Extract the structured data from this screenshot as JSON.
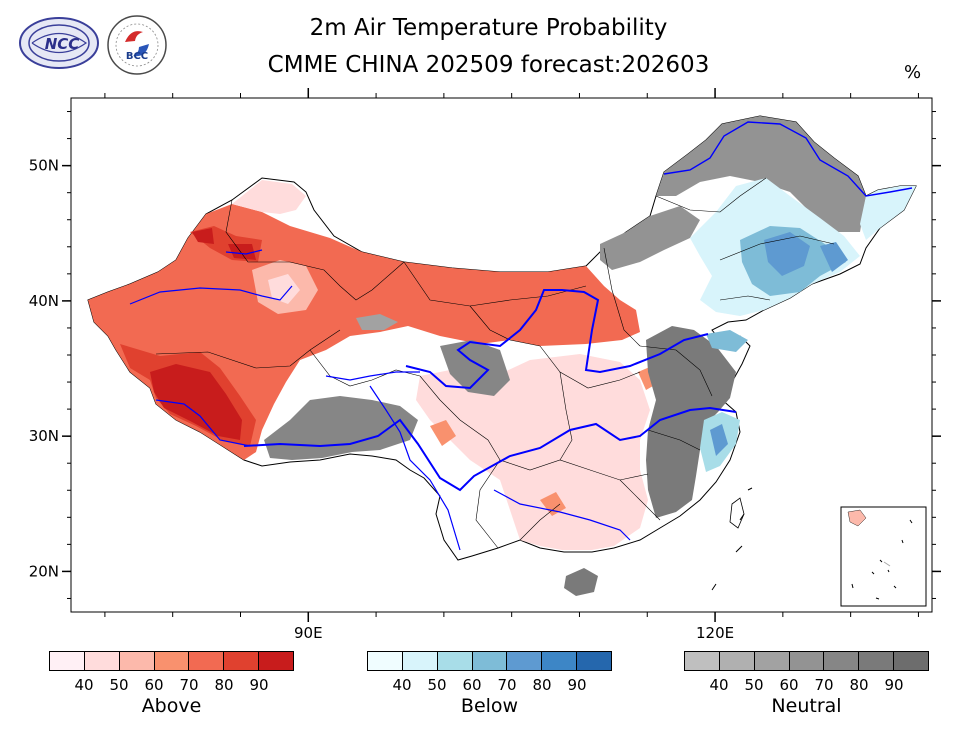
{
  "header": {
    "title_line1": "2m Air Temperature Probability",
    "title_line2": "CMME CHINA 202509 forecast:202603",
    "unit": "%"
  },
  "logos": {
    "ncc": {
      "name": "NCC",
      "text": "NCC"
    },
    "bcc": {
      "name": "BCC",
      "text": "BCC"
    }
  },
  "map": {
    "lat_labels": [
      "50N",
      "40N",
      "30N",
      "20N"
    ],
    "lon_labels": [
      "90E",
      "120E"
    ],
    "lat_values": [
      50,
      40,
      30,
      20
    ],
    "lon_values": [
      90,
      120
    ],
    "extent": {
      "lon_min": 72.5,
      "lon_max": 136,
      "lat_min": 17,
      "lat_max": 55
    },
    "river_color": "#0000ff",
    "boundary_color": "#000000"
  },
  "legends": [
    {
      "name": "Above",
      "label": "Above",
      "ticks": [
        "40",
        "50",
        "60",
        "70",
        "80",
        "90"
      ],
      "colors": [
        "#fff0f5",
        "#ffdcdc",
        "#fcb9ab",
        "#f9916e",
        "#f26a52",
        "#e0412f",
        "#c81c1c"
      ]
    },
    {
      "name": "Below",
      "label": "Below",
      "ticks": [
        "40",
        "50",
        "60",
        "70",
        "80",
        "90"
      ],
      "colors": [
        "#f0fdff",
        "#d8f4fb",
        "#a8dde8",
        "#7ebcd7",
        "#5e9ad1",
        "#3d86c6",
        "#2567ad"
      ]
    },
    {
      "name": "Neutral",
      "label": "Neutral",
      "ticks": [
        "40",
        "50",
        "60",
        "70",
        "80",
        "90"
      ],
      "colors": [
        "#bfbfbf",
        "#b0b0b0",
        "#a2a2a2",
        "#939393",
        "#868686",
        "#7a7a7a",
        "#6d6d6d"
      ]
    }
  ]
}
